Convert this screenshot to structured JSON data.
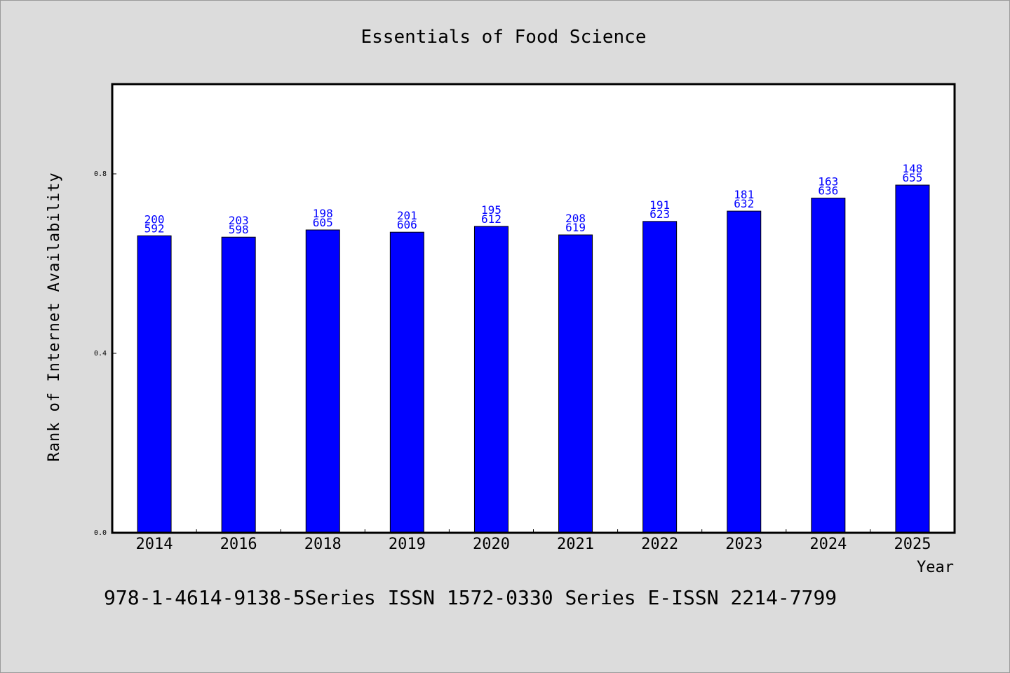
{
  "chart_data": {
    "type": "bar",
    "title": "Essentials of Food Science",
    "xlabel": "Year",
    "ylabel": "Rank of Internet Availability",
    "categories": [
      "2014",
      "2016",
      "2018",
      "2019",
      "2020",
      "2021",
      "2022",
      "2023",
      "2024",
      "2025"
    ],
    "values": [
      0.662,
      0.659,
      0.675,
      0.67,
      0.683,
      0.664,
      0.694,
      0.717,
      0.746,
      0.775
    ],
    "data_labels": [
      [
        "200",
        "592"
      ],
      [
        "203",
        "598"
      ],
      [
        "198",
        "605"
      ],
      [
        "201",
        "606"
      ],
      [
        "195",
        "612"
      ],
      [
        "208",
        "619"
      ],
      [
        "191",
        "623"
      ],
      [
        "181",
        "632"
      ],
      [
        "163",
        "636"
      ],
      [
        "148",
        "655"
      ]
    ],
    "yticks": [
      0.0,
      0.4,
      0.8
    ],
    "ytick_labels": [
      "0.0",
      "0.4",
      "0.8"
    ],
    "ylim": [
      0,
      1.0
    ],
    "grid": false,
    "bar_color": "#0000ff",
    "label_color": "#0000ff",
    "background": "#dcdcdc"
  },
  "footer": "978-1-4614-9138-5Series ISSN 1572-0330 Series E-ISSN 2214-7799"
}
